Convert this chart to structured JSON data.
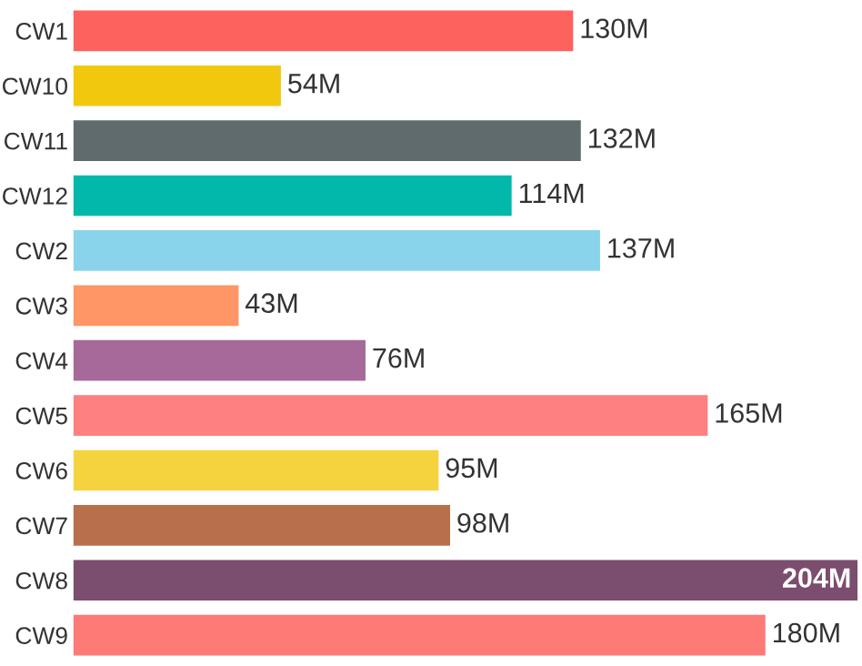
{
  "chart_data": {
    "type": "bar",
    "orientation": "horizontal",
    "categories": [
      "CW1",
      "CW10",
      "CW11",
      "CW12",
      "CW2",
      "CW3",
      "CW4",
      "CW5",
      "CW6",
      "CW7",
      "CW8",
      "CW9"
    ],
    "values": [
      130,
      54,
      132,
      114,
      137,
      43,
      76,
      165,
      95,
      98,
      204,
      180
    ],
    "value_labels": [
      "130M",
      "54M",
      "132M",
      "114M",
      "137M",
      "43M",
      "76M",
      "165M",
      "95M",
      "98M",
      "204M",
      "180M"
    ],
    "colors": [
      "#fd625e",
      "#f2c80f",
      "#5f6b6d",
      "#01b8aa",
      "#8ad4eb",
      "#fe9666",
      "#a66999",
      "#fe8080",
      "#f5d33f",
      "#b86f4b",
      "#7b4d6e",
      "#fd7a77"
    ],
    "grid": false,
    "legend": false
  }
}
